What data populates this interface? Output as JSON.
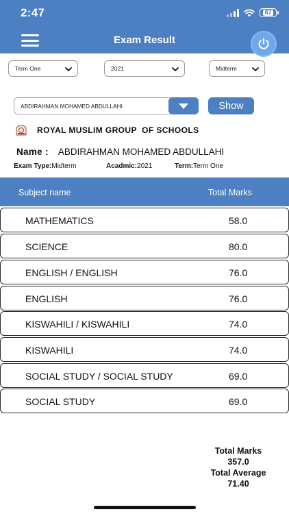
{
  "status_bar": {
    "time": "2:47",
    "battery": "87"
  },
  "nav": {
    "title": "Exam Result"
  },
  "filters": {
    "term": "Term One",
    "year": "2021",
    "exam": "Midterm"
  },
  "student_select": {
    "value": "ABDIRAHMAN MOHAMED ABDULLAHI",
    "show_label": "Show"
  },
  "school": {
    "name": "ROYAL MUSLIM GROUP  OF SCHOOLS"
  },
  "student": {
    "name_label": "Name :",
    "name": "ABDIRAHMAN MOHAMED ABDULLAHI",
    "exam_type_label": "Exam Type:",
    "exam_type": "Midterm",
    "academic_label": "Acadmic:",
    "academic": "2021",
    "term_label": "Term:",
    "term": "Term One"
  },
  "table": {
    "headers": {
      "subject": "Subject name",
      "total": "Total Marks"
    },
    "rows": [
      {
        "subject": "MATHEMATICS",
        "marks": "58.0"
      },
      {
        "subject": "SCIENCE",
        "marks": "80.0"
      },
      {
        "subject": "ENGLISH / ENGLISH",
        "marks": "76.0"
      },
      {
        "subject": "ENGLISH",
        "marks": "76.0"
      },
      {
        "subject": "KISWAHILI / KISWAHILI",
        "marks": "74.0"
      },
      {
        "subject": "KISWAHILI",
        "marks": "74.0"
      },
      {
        "subject": "SOCIAL STUDY / SOCIAL STUDY",
        "marks": "69.0"
      },
      {
        "subject": "SOCIAL STUDY",
        "marks": "69.0"
      }
    ]
  },
  "totals": {
    "total_marks_label": "Total Marks",
    "total_marks": "357.0",
    "total_average_label": "Total Average",
    "total_average": "71.40"
  },
  "colors": {
    "primary": "#4d7fc3",
    "power": "#6ea8e8",
    "border": "#2a2a2a"
  }
}
